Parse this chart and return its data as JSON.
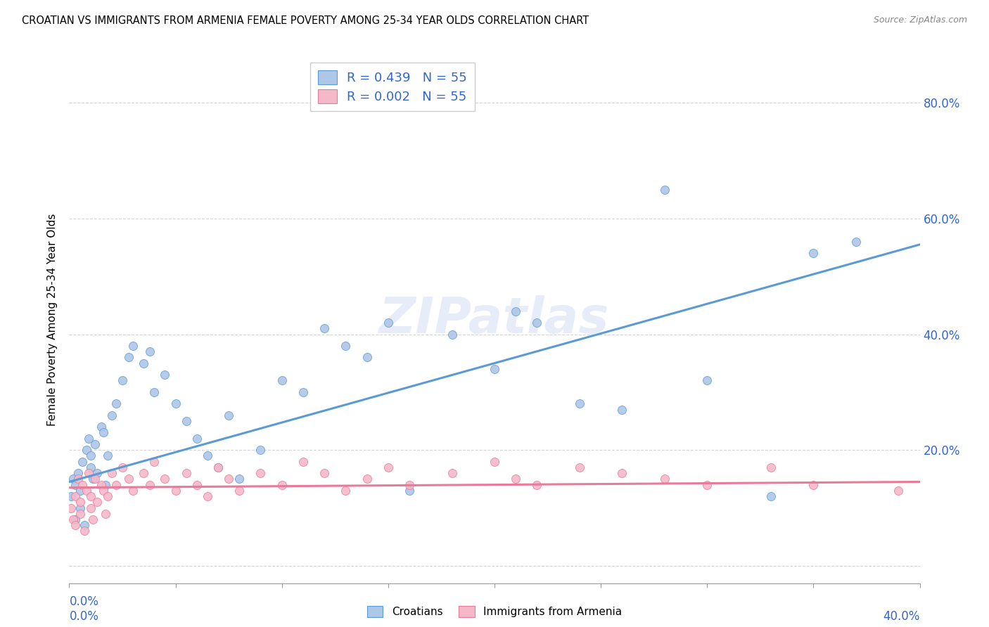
{
  "title": "CROATIAN VS IMMIGRANTS FROM ARMENIA FEMALE POVERTY AMONG 25-34 YEAR OLDS CORRELATION CHART",
  "source": "Source: ZipAtlas.com",
  "ylabel": "Female Poverty Among 25-34 Year Olds",
  "y_ticks": [
    0.0,
    0.2,
    0.4,
    0.6,
    0.8
  ],
  "y_tick_labels": [
    "",
    "20.0%",
    "40.0%",
    "60.0%",
    "80.0%"
  ],
  "x_range": [
    0.0,
    0.4
  ],
  "y_range": [
    -0.03,
    0.88
  ],
  "croatian_R": 0.439,
  "armenian_R": 0.002,
  "N": 55,
  "croatian_color": "#aec6e8",
  "armenian_color": "#f4b8c8",
  "croatian_line_color": "#5b9bd5",
  "armenian_line_color": "#e87a9a",
  "legend_color": "#3366cc",
  "background_color": "#ffffff",
  "grid_color": "#c8c8c8",
  "watermark": "ZIPatlas",
  "cr_x": [
    0.001,
    0.002,
    0.003,
    0.003,
    0.004,
    0.005,
    0.005,
    0.006,
    0.007,
    0.008,
    0.009,
    0.01,
    0.01,
    0.011,
    0.012,
    0.013,
    0.015,
    0.016,
    0.017,
    0.018,
    0.02,
    0.022,
    0.025,
    0.028,
    0.03,
    0.035,
    0.038,
    0.04,
    0.045,
    0.05,
    0.055,
    0.06,
    0.065,
    0.07,
    0.075,
    0.08,
    0.09,
    0.1,
    0.11,
    0.12,
    0.13,
    0.14,
    0.15,
    0.16,
    0.18,
    0.2,
    0.21,
    0.22,
    0.24,
    0.26,
    0.28,
    0.3,
    0.33,
    0.35,
    0.37
  ],
  "cr_y": [
    0.12,
    0.15,
    0.08,
    0.14,
    0.16,
    0.1,
    0.13,
    0.18,
    0.07,
    0.2,
    0.22,
    0.17,
    0.19,
    0.15,
    0.21,
    0.16,
    0.24,
    0.23,
    0.14,
    0.19,
    0.26,
    0.28,
    0.32,
    0.36,
    0.38,
    0.35,
    0.37,
    0.3,
    0.33,
    0.28,
    0.25,
    0.22,
    0.19,
    0.17,
    0.26,
    0.15,
    0.2,
    0.32,
    0.3,
    0.41,
    0.38,
    0.36,
    0.42,
    0.13,
    0.4,
    0.34,
    0.44,
    0.42,
    0.28,
    0.27,
    0.65,
    0.32,
    0.12,
    0.54,
    0.56
  ],
  "ar_x": [
    0.001,
    0.002,
    0.003,
    0.003,
    0.004,
    0.005,
    0.005,
    0.006,
    0.007,
    0.008,
    0.009,
    0.01,
    0.01,
    0.011,
    0.012,
    0.013,
    0.015,
    0.016,
    0.017,
    0.018,
    0.02,
    0.022,
    0.025,
    0.028,
    0.03,
    0.035,
    0.038,
    0.04,
    0.045,
    0.05,
    0.055,
    0.06,
    0.065,
    0.07,
    0.075,
    0.08,
    0.09,
    0.1,
    0.11,
    0.12,
    0.13,
    0.14,
    0.15,
    0.16,
    0.18,
    0.2,
    0.21,
    0.22,
    0.24,
    0.26,
    0.28,
    0.3,
    0.33,
    0.35,
    0.39
  ],
  "ar_y": [
    0.1,
    0.08,
    0.12,
    0.07,
    0.15,
    0.11,
    0.09,
    0.14,
    0.06,
    0.13,
    0.16,
    0.1,
    0.12,
    0.08,
    0.15,
    0.11,
    0.14,
    0.13,
    0.09,
    0.12,
    0.16,
    0.14,
    0.17,
    0.15,
    0.13,
    0.16,
    0.14,
    0.18,
    0.15,
    0.13,
    0.16,
    0.14,
    0.12,
    0.17,
    0.15,
    0.13,
    0.16,
    0.14,
    0.18,
    0.16,
    0.13,
    0.15,
    0.17,
    0.14,
    0.16,
    0.18,
    0.15,
    0.14,
    0.17,
    0.16,
    0.15,
    0.14,
    0.17,
    0.14,
    0.13
  ],
  "cr_line_x": [
    0.0,
    0.4
  ],
  "cr_line_y": [
    0.145,
    0.555
  ],
  "ar_line_x": [
    0.0,
    0.4
  ],
  "ar_line_y": [
    0.135,
    0.145
  ],
  "bottom_legend_items": [
    {
      "label": "Croatians",
      "color": "#aec6e8",
      "edge": "#5b9bd5"
    },
    {
      "label": "Immigrants from Armenia",
      "color": "#f4b8c8",
      "edge": "#e87a9a"
    }
  ]
}
